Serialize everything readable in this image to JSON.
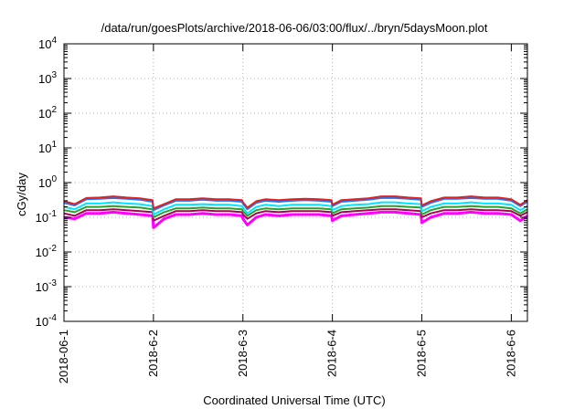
{
  "chart_data": {
    "type": "line",
    "title": "/data/run/goesPlots/archive/2018-06-06/03:00/flux/../bryn/5daysMoon.plot",
    "xlabel": "Coordinated Universal Time (UTC)",
    "ylabel": "cGy/day",
    "yscale": "log",
    "ylim": [
      0.0001,
      10000
    ],
    "xlim_days": [
      0,
      5.18
    ],
    "grid": true,
    "legend": "none",
    "x_ticks": [
      {
        "label": "2018-06-1",
        "day": 0
      },
      {
        "label": "2018-6-2",
        "day": 1
      },
      {
        "label": "2018-6-3",
        "day": 2
      },
      {
        "label": "2018-6-4",
        "day": 3
      },
      {
        "label": "2018-6-5",
        "day": 4
      },
      {
        "label": "2018-6-6",
        "day": 5
      }
    ],
    "y_ticks": [
      {
        "base": "10",
        "exp": "4",
        "value": 10000
      },
      {
        "base": "10",
        "exp": "3",
        "value": 1000
      },
      {
        "base": "10",
        "exp": "2",
        "value": 100
      },
      {
        "base": "10",
        "exp": "1",
        "value": 10
      },
      {
        "base": "10",
        "exp": "0",
        "value": 1
      },
      {
        "base": "10",
        "exp": "-1",
        "value": 0.1
      },
      {
        "base": "10",
        "exp": "-2",
        "value": 0.01
      },
      {
        "base": "10",
        "exp": "-3",
        "value": 0.001
      },
      {
        "base": "10",
        "exp": "-4",
        "value": 0.0001
      }
    ],
    "x_days": [
      0.0,
      0.12,
      0.25,
      0.4,
      0.55,
      0.7,
      0.85,
      0.99,
      1.0,
      1.12,
      1.25,
      1.4,
      1.55,
      1.7,
      1.85,
      1.99,
      2.0,
      2.05,
      2.15,
      2.25,
      2.4,
      2.55,
      2.7,
      2.85,
      2.99,
      3.0,
      3.1,
      3.25,
      3.4,
      3.55,
      3.7,
      3.85,
      3.99,
      4.0,
      4.1,
      4.25,
      4.4,
      4.55,
      4.7,
      4.85,
      5.0,
      5.1,
      5.18
    ],
    "series": [
      {
        "color": "#ff00ff",
        "values": [
          0.1,
          0.09,
          0.13,
          0.13,
          0.14,
          0.13,
          0.12,
          0.11,
          0.05,
          0.09,
          0.12,
          0.12,
          0.13,
          0.12,
          0.12,
          0.11,
          0.09,
          0.06,
          0.1,
          0.12,
          0.11,
          0.12,
          0.12,
          0.12,
          0.11,
          0.08,
          0.11,
          0.12,
          0.13,
          0.14,
          0.14,
          0.13,
          0.12,
          0.07,
          0.1,
          0.13,
          0.13,
          0.14,
          0.13,
          0.13,
          0.12,
          0.08,
          0.11
        ]
      },
      {
        "color": "#aa0055",
        "values": [
          0.13,
          0.11,
          0.16,
          0.16,
          0.17,
          0.16,
          0.15,
          0.14,
          0.08,
          0.11,
          0.15,
          0.15,
          0.16,
          0.15,
          0.15,
          0.14,
          0.12,
          0.09,
          0.13,
          0.15,
          0.14,
          0.15,
          0.15,
          0.15,
          0.14,
          0.11,
          0.14,
          0.15,
          0.16,
          0.17,
          0.17,
          0.16,
          0.15,
          0.1,
          0.13,
          0.16,
          0.16,
          0.17,
          0.16,
          0.16,
          0.15,
          0.11,
          0.14
        ]
      },
      {
        "color": "#2ca02c",
        "values": [
          0.16,
          0.14,
          0.2,
          0.2,
          0.21,
          0.2,
          0.19,
          0.17,
          0.1,
          0.14,
          0.18,
          0.18,
          0.19,
          0.18,
          0.18,
          0.17,
          0.15,
          0.11,
          0.16,
          0.18,
          0.17,
          0.18,
          0.18,
          0.18,
          0.17,
          0.13,
          0.17,
          0.18,
          0.19,
          0.21,
          0.21,
          0.2,
          0.19,
          0.12,
          0.16,
          0.2,
          0.2,
          0.21,
          0.2,
          0.2,
          0.18,
          0.13,
          0.17
        ]
      },
      {
        "color": "#00e5ff",
        "values": [
          0.2,
          0.17,
          0.25,
          0.25,
          0.27,
          0.25,
          0.24,
          0.21,
          0.12,
          0.17,
          0.23,
          0.23,
          0.24,
          0.23,
          0.23,
          0.21,
          0.19,
          0.13,
          0.2,
          0.23,
          0.21,
          0.23,
          0.23,
          0.23,
          0.21,
          0.16,
          0.21,
          0.23,
          0.24,
          0.27,
          0.27,
          0.25,
          0.24,
          0.15,
          0.2,
          0.25,
          0.25,
          0.27,
          0.25,
          0.25,
          0.23,
          0.16,
          0.21
        ]
      },
      {
        "color": "#1f77ff",
        "values": [
          0.26,
          0.22,
          0.33,
          0.34,
          0.36,
          0.34,
          0.32,
          0.28,
          0.16,
          0.22,
          0.3,
          0.3,
          0.32,
          0.3,
          0.3,
          0.28,
          0.25,
          0.17,
          0.26,
          0.3,
          0.28,
          0.3,
          0.31,
          0.3,
          0.28,
          0.21,
          0.28,
          0.3,
          0.32,
          0.36,
          0.36,
          0.34,
          0.32,
          0.2,
          0.26,
          0.34,
          0.34,
          0.36,
          0.34,
          0.34,
          0.3,
          0.21,
          0.28
        ]
      },
      {
        "color": "#dd2222",
        "values": [
          0.29,
          0.24,
          0.36,
          0.37,
          0.4,
          0.37,
          0.35,
          0.31,
          0.18,
          0.24,
          0.33,
          0.33,
          0.35,
          0.33,
          0.33,
          0.31,
          0.27,
          0.19,
          0.29,
          0.33,
          0.31,
          0.33,
          0.34,
          0.33,
          0.31,
          0.23,
          0.31,
          0.33,
          0.35,
          0.4,
          0.4,
          0.37,
          0.35,
          0.22,
          0.29,
          0.37,
          0.37,
          0.4,
          0.37,
          0.37,
          0.33,
          0.23,
          0.31
        ]
      }
    ]
  }
}
